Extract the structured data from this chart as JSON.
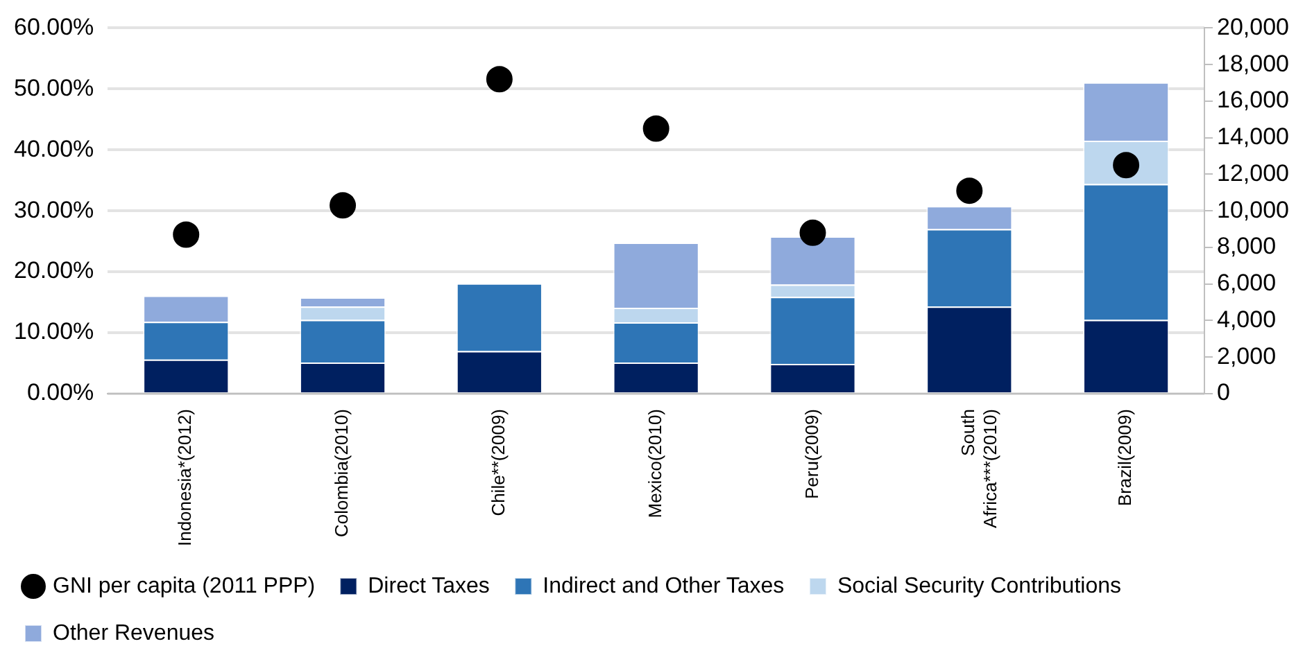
{
  "chart_data": {
    "type": "bar",
    "stacked": true,
    "grid": "y",
    "legend": "bottom",
    "categories": [
      "Indonesia*(2012)",
      "Colombia(2010)",
      "Chile**(2009)",
      "Mexico(2010)",
      "Peru(2009)",
      "South Africa***(2010)",
      "Brazil(2009)"
    ],
    "series": [
      {
        "name": "Direct Taxes",
        "color": "#002060",
        "values": [
          5.6,
          5.1,
          7.0,
          5.1,
          4.9,
          14.3,
          12.1
        ]
      },
      {
        "name": "Indirect and Other Taxes",
        "color": "#2e75b6",
        "values": [
          6.2,
          7.0,
          11.1,
          6.6,
          11.0,
          12.7,
          22.3
        ]
      },
      {
        "name": "Social Security Contributions",
        "color": "#bdd7ee",
        "values": [
          0,
          2.2,
          0,
          2.4,
          2.0,
          0,
          7.1
        ]
      },
      {
        "name": "Other Revenues",
        "color": "#8faadc",
        "values": [
          4.3,
          1.5,
          0,
          10.7,
          7.9,
          3.8,
          9.6
        ]
      },
      {
        "name": "GNI per capita (2011 PPP)",
        "type": "scatter",
        "axis": "y2",
        "marker": "circle",
        "color": "#000000",
        "x": [
          "Indonesia*(2012)",
          "Colombia(2010)",
          "Chile**(2009)",
          "Mexico(2010)",
          "Peru(2009)",
          "South Africa***(2010)",
          "Brazil(2009)"
        ],
        "values": [
          8700,
          10300,
          17200,
          14500,
          8800,
          11100,
          12500
        ]
      }
    ],
    "ylim": [
      0,
      60
    ],
    "yticks": [
      {
        "value": 0,
        "label": "0.00%"
      },
      {
        "value": 10,
        "label": "10.00%"
      },
      {
        "value": 20,
        "label": "20.00%"
      },
      {
        "value": 30,
        "label": "30.00%"
      },
      {
        "value": 40,
        "label": "40.00%"
      },
      {
        "value": 50,
        "label": "50.00%"
      },
      {
        "value": 60,
        "label": "60.00%"
      }
    ],
    "y2lim": [
      0,
      20000
    ],
    "y2ticks": [
      {
        "value": 0,
        "label": "0"
      },
      {
        "value": 2000,
        "label": "2,000"
      },
      {
        "value": 4000,
        "label": "4,000"
      },
      {
        "value": 6000,
        "label": "6,000"
      },
      {
        "value": 8000,
        "label": "8,000"
      },
      {
        "value": 10000,
        "label": "10,000"
      },
      {
        "value": 12000,
        "label": "12,000"
      },
      {
        "value": 14000,
        "label": "14,000"
      },
      {
        "value": 16000,
        "label": "16,000"
      },
      {
        "value": 18000,
        "label": "18,000"
      },
      {
        "value": 20000,
        "label": "20,000"
      }
    ]
  }
}
